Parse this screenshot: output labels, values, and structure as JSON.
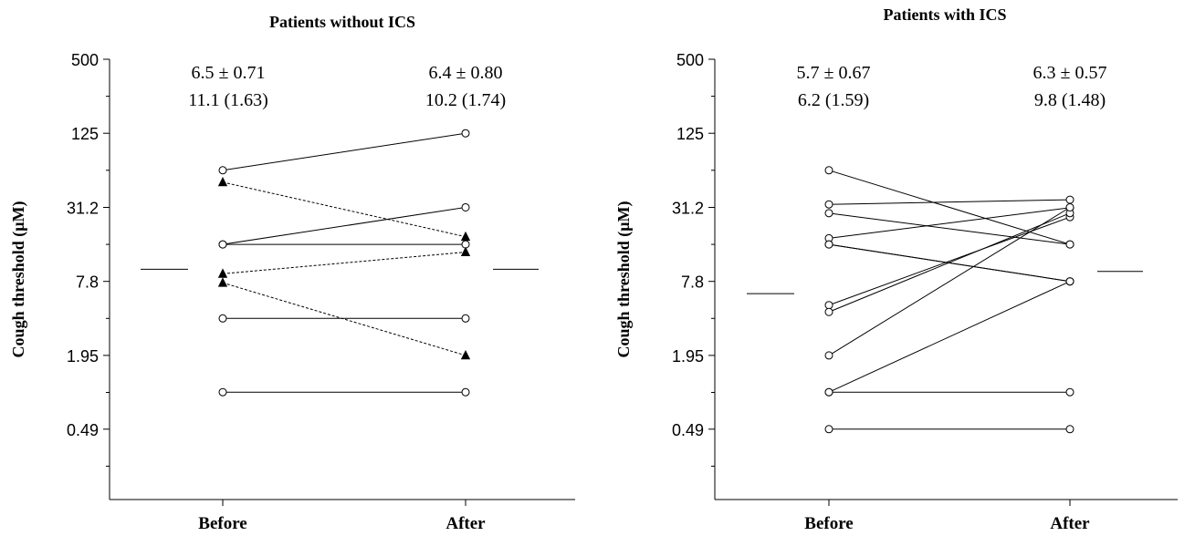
{
  "chart_data": [
    {
      "type": "scatter",
      "title": "Patients without ICS",
      "ylabel": "Cough threshold (μM)",
      "yscale": "log2",
      "ylim": [
        0.12,
        500
      ],
      "yticks": [
        "500",
        "125",
        "31.2",
        "7.8",
        "1.95",
        "0.49"
      ],
      "categories": [
        "Before",
        "After"
      ],
      "annotations": [
        {
          "line1": "6.5 ± 0.71",
          "line2": "11.1 (1.63)"
        },
        {
          "line1": "6.4 ± 0.80",
          "line2": "10.2 (1.74)"
        }
      ],
      "group_medians": [
        {
          "category": "Before",
          "y": 9.8
        },
        {
          "category": "After",
          "y": 9.8
        }
      ],
      "series": [
        {
          "marker": "circle",
          "line": "solid",
          "values": [
            62.5,
            125
          ]
        },
        {
          "marker": "circle",
          "line": "solid",
          "values": [
            15.6,
            31.2
          ]
        },
        {
          "marker": "circle",
          "line": "solid",
          "values": [
            15.6,
            15.6
          ]
        },
        {
          "marker": "circle",
          "line": "solid",
          "values": [
            3.9,
            3.9
          ]
        },
        {
          "marker": "circle",
          "line": "solid",
          "values": [
            0.98,
            0.98
          ]
        },
        {
          "marker": "triangle",
          "line": "dashed",
          "values": [
            50,
            18
          ]
        },
        {
          "marker": "triangle",
          "line": "dashed",
          "values": [
            9.0,
            13.5
          ]
        },
        {
          "marker": "triangle",
          "line": "dashed",
          "values": [
            7.6,
            1.95
          ]
        }
      ]
    },
    {
      "type": "scatter",
      "title": "Patients with ICS",
      "ylabel": "Cough threshold (μM)",
      "yscale": "log2",
      "ylim": [
        0.12,
        500
      ],
      "yticks": [
        "500",
        "125",
        "31.2",
        "7.8",
        "1.95",
        "0.49"
      ],
      "categories": [
        "Before",
        "After"
      ],
      "annotations": [
        {
          "line1": "5.7 ± 0.67",
          "line2": "6.2 (1.59)"
        },
        {
          "line1": "6.3 ± 0.57",
          "line2": "9.8 (1.48)"
        }
      ],
      "group_medians": [
        {
          "category": "Before",
          "y": 6.2
        },
        {
          "category": "After",
          "y": 9.4
        }
      ],
      "series": [
        {
          "marker": "circle",
          "line": "solid",
          "values": [
            62.5,
            15.6
          ]
        },
        {
          "marker": "circle",
          "line": "solid",
          "values": [
            33,
            36
          ]
        },
        {
          "marker": "circle",
          "line": "solid",
          "values": [
            28,
            15.6
          ]
        },
        {
          "marker": "circle",
          "line": "solid",
          "values": [
            17.5,
            31
          ]
        },
        {
          "marker": "circle",
          "line": "solid",
          "values": [
            15.6,
            7.8
          ]
        },
        {
          "marker": "circle",
          "line": "solid",
          "values": [
            15.6,
            7.8
          ]
        },
        {
          "marker": "circle",
          "line": "solid",
          "values": [
            5.0,
            26
          ]
        },
        {
          "marker": "circle",
          "line": "solid",
          "values": [
            4.4,
            28
          ]
        },
        {
          "marker": "circle",
          "line": "solid",
          "values": [
            1.95,
            31.2
          ]
        },
        {
          "marker": "circle",
          "line": "solid",
          "values": [
            0.98,
            7.8
          ]
        },
        {
          "marker": "circle",
          "line": "solid",
          "values": [
            0.98,
            0.98
          ]
        },
        {
          "marker": "circle",
          "line": "solid",
          "values": [
            0.49,
            0.49
          ]
        }
      ]
    }
  ]
}
